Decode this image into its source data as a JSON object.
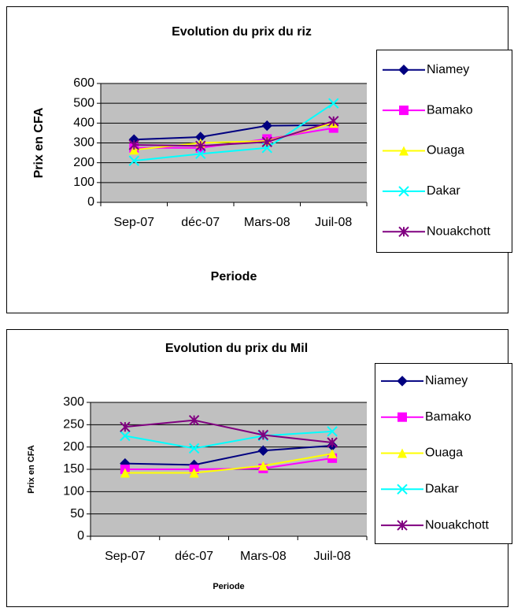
{
  "chart_data": [
    {
      "type": "line",
      "title": "Evolution du prix du riz",
      "x_label": "Periode",
      "y_label": "Prix en CFA",
      "categories": [
        "Sep-07",
        "déc-07",
        "Mars-08",
        "Juil-08"
      ],
      "series": [
        {
          "name": "Niamey",
          "color": "#000080",
          "values": [
            317,
            330,
            387,
            390
          ]
        },
        {
          "name": "Bamako",
          "color": "#ff00ff",
          "values": [
            275,
            275,
            320,
            375
          ]
        },
        {
          "name": "Ouaga",
          "color": "#ffff00",
          "values": [
            265,
            300,
            310,
            400
          ]
        },
        {
          "name": "Dakar",
          "color": "#00ffff",
          "values": [
            210,
            245,
            275,
            500
          ]
        },
        {
          "name": "Nouakchott",
          "color": "#800080",
          "values": [
            290,
            285,
            305,
            410
          ]
        }
      ],
      "ylim": [
        0,
        600
      ],
      "yticks": [
        0,
        100,
        200,
        300,
        400,
        500,
        600
      ],
      "grid": true
    },
    {
      "type": "line",
      "title": "Evolution du prix du Mil",
      "x_label": "Periode",
      "y_label": "Prix en CFA",
      "categories": [
        "Sep-07",
        "déc-07",
        "Mars-08",
        "Juil-08"
      ],
      "series": [
        {
          "name": "Niamey",
          "color": "#000080",
          "values": [
            163,
            160,
            192,
            203
          ]
        },
        {
          "name": "Bamako",
          "color": "#ff00ff",
          "values": [
            150,
            150,
            152,
            175
          ]
        },
        {
          "name": "Ouaga",
          "color": "#ffff00",
          "values": [
            142,
            142,
            158,
            185
          ]
        },
        {
          "name": "Dakar",
          "color": "#00ffff",
          "values": [
            225,
            197,
            225,
            235
          ]
        },
        {
          "name": "Nouakchott",
          "color": "#800080",
          "values": [
            245,
            260,
            227,
            210
          ]
        }
      ],
      "ylim": [
        0,
        300
      ],
      "yticks": [
        0,
        50,
        100,
        150,
        200,
        250,
        300
      ],
      "grid": true
    }
  ]
}
